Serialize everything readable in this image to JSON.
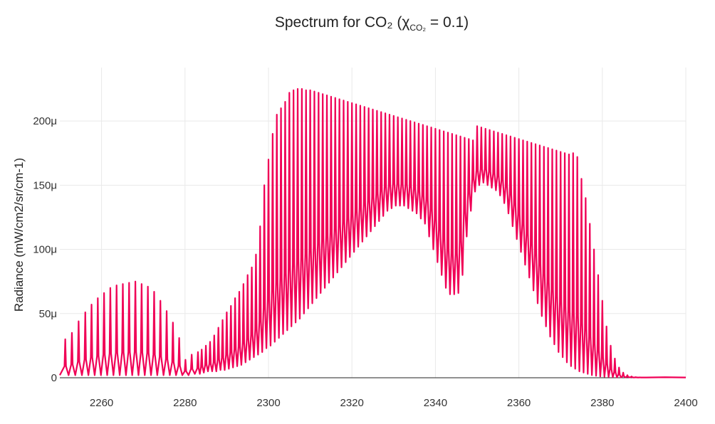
{
  "chart_data": {
    "type": "line",
    "title": "Spectrum for CO₂ (χ",
    "title_sub": "CO₂",
    "title_tail": " = 0.1)",
    "xlabel": "",
    "ylabel": "Radiance (mW/cm2/sr/cm-1)",
    "xlim": [
      2250,
      2400
    ],
    "ylim": [
      0,
      225
    ],
    "x_ticks": [
      2260,
      2280,
      2300,
      2320,
      2340,
      2360,
      2380,
      2400
    ],
    "y_ticks": [
      0,
      50,
      100,
      150,
      200
    ],
    "y_tick_labels": [
      "0",
      "50μ",
      "100μ",
      "150μ",
      "200μ"
    ],
    "grid": true,
    "color": "#f00056",
    "series": [
      {
        "name": "",
        "peaks_x": [
          2251.3,
          2252.9,
          2254.5,
          2256.1,
          2257.6,
          2259.1,
          2260.6,
          2262.1,
          2263.6,
          2265.1,
          2266.6,
          2268.1,
          2269.6,
          2271.1,
          2272.6,
          2274.1,
          2275.6,
          2277.1,
          2278.6,
          2280.1,
          2281.6,
          2283.1,
          2284.0,
          2285.0,
          2286.0,
          2287.0,
          2288.0,
          2289.0,
          2290.0,
          2291.0,
          2292.0,
          2293.0,
          2294.0,
          2295.0,
          2296.0,
          2297.0,
          2298.0,
          2299.0,
          2300.0,
          2301.0,
          2302.0,
          2303.0,
          2304.0,
          2305.0,
          2306.0,
          2307.0,
          2308.0,
          2309.0,
          2310.0,
          2311.0,
          2312.0,
          2313.0,
          2314.0,
          2315.0,
          2316.0,
          2317.0,
          2318.0,
          2319.0,
          2320.0,
          2321.0,
          2322.0,
          2323.0,
          2324.0,
          2325.0,
          2326.0,
          2327.0,
          2328.0,
          2329.0,
          2330.0,
          2331.0,
          2332.0,
          2333.0,
          2334.0,
          2335.0,
          2336.0,
          2337.0,
          2338.0,
          2339.0,
          2340.0,
          2341.0,
          2342.0,
          2343.0,
          2344.0,
          2345.0,
          2346.0,
          2347.0,
          2348.0,
          2349.0,
          2350.0,
          2351.0,
          2352.0,
          2353.0,
          2354.0,
          2355.0,
          2356.0,
          2357.0,
          2358.0,
          2359.0,
          2360.0,
          2361.0,
          2362.0,
          2363.0,
          2364.0,
          2365.0,
          2366.0,
          2367.0,
          2368.0,
          2369.0,
          2370.0,
          2371.0,
          2372.0,
          2373.0,
          2374.0,
          2375.0,
          2376.0,
          2377.0,
          2378.0,
          2379.0,
          2380.0,
          2381.0,
          2382.0,
          2383.0,
          2384.0,
          2385.0,
          2386.0,
          2387.0,
          2388.0,
          2389.0,
          2390.0
        ],
        "peaks_y": [
          30,
          35,
          44,
          51,
          57,
          62,
          66,
          70,
          72,
          73,
          74,
          75,
          73,
          71,
          67,
          60,
          52,
          43,
          31,
          14,
          18,
          20,
          22,
          25,
          28,
          33,
          39,
          45,
          51,
          56,
          62,
          67,
          73,
          80,
          86,
          96,
          118,
          150,
          170,
          190,
          205,
          210,
          215,
          222,
          224,
          225,
          225,
          224,
          224,
          223,
          222,
          221,
          220,
          219,
          218,
          217,
          216,
          215,
          214,
          213,
          212,
          211,
          210,
          209,
          208,
          207,
          206,
          205,
          204,
          203,
          202,
          201,
          200,
          199,
          198,
          197,
          196,
          195,
          194,
          193,
          192,
          191,
          190,
          189,
          188,
          187,
          186,
          185,
          196,
          195,
          194,
          193,
          192,
          191,
          190,
          189,
          188,
          187,
          186,
          185,
          184,
          183,
          182,
          181,
          180,
          179,
          178,
          177,
          176,
          175,
          174,
          175,
          172,
          155,
          140,
          120,
          100,
          80,
          60,
          40,
          25,
          15,
          8,
          4,
          2,
          1,
          0.5,
          0.3,
          0.2
        ],
        "troughs_y": [
          2,
          2,
          2,
          2,
          2,
          2,
          2,
          2,
          2,
          2,
          2,
          2,
          2,
          2,
          2,
          2,
          2,
          2,
          2,
          2,
          3,
          3,
          4,
          5,
          5,
          5,
          6,
          6,
          7,
          8,
          9,
          10,
          12,
          14,
          16,
          18,
          20,
          23,
          25,
          28,
          31,
          34,
          37,
          40,
          43,
          46,
          50,
          54,
          58,
          62,
          66,
          70,
          74,
          78,
          82,
          86,
          90,
          94,
          98,
          102,
          106,
          110,
          114,
          118,
          122,
          126,
          130,
          132,
          134,
          134,
          134,
          134,
          132,
          130,
          128,
          124,
          120,
          110,
          100,
          90,
          80,
          70,
          65,
          66,
          80,
          110,
          130,
          145,
          150,
          152,
          152,
          150,
          148,
          146,
          142,
          136,
          128,
          118,
          108,
          98,
          88,
          78,
          68,
          58,
          48,
          40,
          32,
          26,
          20,
          16,
          12,
          9,
          7,
          5,
          4,
          3,
          2,
          1.5,
          1,
          0.8,
          0.6,
          0.5,
          0.4,
          0.3,
          0.3,
          0.3,
          0.2,
          0.2,
          0.2
        ]
      }
    ]
  }
}
